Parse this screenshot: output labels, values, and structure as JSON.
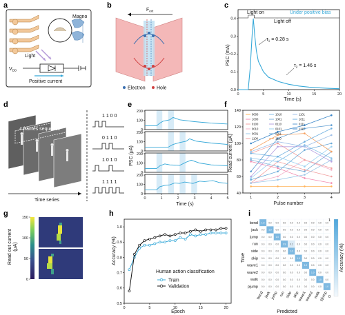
{
  "colors": {
    "accent_cyan": "#35a8d8",
    "neuron_orange": "#f2c89a",
    "magno_blue": "#8fb4d9",
    "electrode_pink": "#f4b8b8",
    "heatmap_dark": "#2b2f6e",
    "heatmap_bright": "#f3e63c",
    "cm_highlight": "#7db8e0",
    "cm_light": "#dcebf6"
  },
  "panels": {
    "a": {
      "letter": "a",
      "magno": "Magno",
      "light": "Light",
      "vdd": "V",
      "vdd_sub": "DD",
      "positive_current": "Positive current"
    },
    "b": {
      "letter": "b",
      "field": "F",
      "field_sub": "ext",
      "electron": "Electron",
      "hole": "Hole"
    },
    "c": {
      "letter": "c",
      "under_bias": "Under positive bias",
      "light_on": "Light on",
      "light_off": "Light off",
      "tau1": "τ",
      "tau1_sub": "1",
      "tau1_val": " = 0.28 s",
      "tau2": "τ",
      "tau2_sub": "2",
      "tau2_val": " = 1.46 s",
      "ylabel": "PSC (mA)",
      "xlabel": "Time (s)"
    },
    "d": {
      "letter": "d",
      "frames": "4 frames sequence",
      "time_series": "Time series",
      "codes": [
        "1 1 0 0",
        "0 1 1 0",
        "1 0 1 0",
        "1 1 1 1"
      ]
    },
    "e": {
      "letter": "e",
      "ylabel": "PSC (μA)",
      "xlabel": "Time (s)"
    },
    "f": {
      "letter": "f",
      "ylabel": "Read current (μA)",
      "xlabel": "Pulse number"
    },
    "g": {
      "letter": "g",
      "ylabel": "Read out current",
      "yunit": "(μA)"
    },
    "h": {
      "letter": "h",
      "ylabel": "Accuracy (%)",
      "xlabel": "Epoch",
      "legend_title": "Human action classification",
      "train": "Train",
      "validation": "Validation"
    },
    "i": {
      "letter": "i",
      "ylabel": "True",
      "xlabel": "Predicted",
      "cbar_label": "Accuracy (%)",
      "cbar_max": "1",
      "cbar_min": "0"
    }
  },
  "chart_data": [
    {
      "id": "c",
      "type": "line",
      "x": [
        0,
        2,
        2.4,
        2.8,
        3.0,
        3.3,
        3.6,
        4,
        5,
        6,
        8,
        10,
        12,
        14,
        16,
        18,
        20
      ],
      "y": [
        0,
        0,
        0.12,
        0.32,
        0.4,
        0.3,
        0.22,
        0.16,
        0.1,
        0.07,
        0.045,
        0.03,
        0.02,
        0.014,
        0.01,
        0.007,
        0.005
      ],
      "xlim": [
        0,
        20
      ],
      "ylim": [
        0,
        0.45
      ],
      "xticks": [
        "0",
        "5",
        "10",
        "15",
        "20"
      ],
      "yticks": [
        "0.0",
        "0.1",
        "0.2",
        "0.3",
        "0.4"
      ]
    },
    {
      "id": "e",
      "type": "line",
      "xlim": [
        0,
        5
      ],
      "ylim": [
        0,
        200
      ],
      "xticks": [
        "0",
        "1",
        "2",
        "3",
        "4",
        "5"
      ],
      "yticks": [
        "0",
        "100",
        "200"
      ],
      "series": [
        {
          "code": "1100",
          "x": [
            0,
            0.7,
            0.9,
            1.1,
            1.5,
            1.7,
            2.1,
            3,
            4,
            5
          ],
          "y": [
            40,
            40,
            70,
            90,
            105,
            130,
            105,
            85,
            70,
            60
          ]
        },
        {
          "code": "0110",
          "x": [
            0,
            1.4,
            1.7,
            2.1,
            2.5,
            2.7,
            3.1,
            4,
            5
          ],
          "y": [
            40,
            40,
            70,
            90,
            105,
            130,
            105,
            85,
            70
          ]
        },
        {
          "code": "1010",
          "x": [
            0,
            0.7,
            0.9,
            1.2,
            1.5,
            2.1,
            2.5,
            2.8,
            3.3,
            4,
            5
          ],
          "y": [
            40,
            40,
            70,
            90,
            80,
            75,
            110,
            130,
            100,
            80,
            70
          ]
        },
        {
          "code": "1111",
          "x": [
            0,
            0.7,
            0.9,
            1.2,
            1.5,
            1.8,
            2.1,
            2.4,
            2.9,
            3.3,
            3.6,
            4.1,
            4.5,
            5
          ],
          "y": [
            40,
            40,
            75,
            90,
            95,
            115,
            110,
            125,
            110,
            135,
            130,
            140,
            120,
            110
          ]
        }
      ]
    },
    {
      "id": "f",
      "type": "line",
      "x": [
        1,
        2,
        3,
        4
      ],
      "xlim": [
        0.7,
        4.3
      ],
      "ylim": [
        40,
        140
      ],
      "xticks": [
        "1",
        "2",
        "3",
        "4"
      ],
      "yticks": [
        "40",
        "60",
        "80",
        "100",
        "120",
        "140"
      ],
      "legend": [
        "0000",
        "1000",
        "0100",
        "0010",
        "0001",
        "1100",
        "1010",
        "1001",
        "0110",
        "0101",
        "0011",
        "1110",
        "1101",
        "1011",
        "0111",
        "1111"
      ],
      "series_colors": [
        "#ffb35a",
        "#f28bb0",
        "#f2a0a0",
        "#f4b0c8",
        "#9ec8e8",
        "#f2a0a0",
        "#88c0e8",
        "#7fb0d8",
        "#b6a0e0",
        "#9ad0f0",
        "#6aaad8",
        "#f5a060",
        "#a0c0e8",
        "#70b0e0",
        "#5a9ad0",
        "#3a86c8"
      ],
      "series": [
        [
          48,
          48,
          48,
          48
        ],
        [
          78,
          70,
          58,
          52
        ],
        [
          52,
          78,
          68,
          60
        ],
        [
          52,
          60,
          80,
          68
        ],
        [
          52,
          56,
          62,
          80
        ],
        [
          88,
          100,
          80,
          70
        ],
        [
          82,
          78,
          98,
          82
        ],
        [
          80,
          72,
          66,
          90
        ],
        [
          60,
          96,
          96,
          78
        ],
        [
          58,
          84,
          72,
          96
        ],
        [
          56,
          66,
          92,
          100
        ],
        [
          92,
          110,
          112,
          90
        ],
        [
          90,
          102,
          96,
          110
        ],
        [
          88,
          84,
          102,
          118
        ],
        [
          66,
          106,
          118,
          122
        ],
        [
          100,
          114,
          122,
          134
        ]
      ]
    },
    {
      "id": "h",
      "type": "line",
      "xlim": [
        0,
        21
      ],
      "ylim": [
        0.5,
        1.05
      ],
      "xticks": [
        "0",
        "5",
        "10",
        "15",
        "20"
      ],
      "yticks": [
        "0.5",
        "0.6",
        "0.7",
        "0.8",
        "0.9",
        "1.0"
      ],
      "series": [
        {
          "name": "Train",
          "x": [
            1,
            2,
            3,
            4,
            5,
            6,
            7,
            8,
            9,
            10,
            11,
            12,
            13,
            14,
            15,
            16,
            17,
            18,
            19,
            20
          ],
          "y": [
            0.72,
            0.8,
            0.86,
            0.88,
            0.88,
            0.89,
            0.9,
            0.9,
            0.91,
            0.91,
            0.93,
            0.92,
            0.95,
            0.94,
            0.95,
            0.95,
            0.96,
            0.96,
            0.96,
            0.96
          ]
        },
        {
          "name": "Validation",
          "x": [
            1,
            2,
            3,
            4,
            5,
            6,
            7,
            8,
            9,
            10,
            11,
            12,
            13,
            14,
            15,
            16,
            17,
            18,
            19,
            20
          ],
          "y": [
            0.58,
            0.82,
            0.88,
            0.91,
            0.92,
            0.93,
            0.94,
            0.95,
            0.94,
            0.95,
            0.96,
            0.96,
            0.97,
            0.98,
            0.97,
            0.98,
            0.98,
            0.98,
            0.99,
            0.99
          ]
        }
      ]
    },
    {
      "id": "i",
      "type": "heatmap",
      "labels": [
        "bend",
        "jack",
        "jump",
        "run",
        "side",
        "skip",
        "wave1",
        "wave2",
        "walk",
        "pjump"
      ],
      "values": [
        [
          1.0,
          0.0,
          0.0,
          0.0,
          0.0,
          0.0,
          0.0,
          0.0,
          0.0,
          0.0
        ],
        [
          0.0,
          1.0,
          0.0,
          0.0,
          0.0,
          0.0,
          0.0,
          0.0,
          0.0,
          0.0
        ],
        [
          0.0,
          0.0,
          1.0,
          0.0,
          0.0,
          0.0,
          0.0,
          0.0,
          0.0,
          0.0
        ],
        [
          0.0,
          0.0,
          0.0,
          0.9,
          0.1,
          0.0,
          0.0,
          0.0,
          0.0,
          0.0
        ],
        [
          0.0,
          0.0,
          0.0,
          0.0,
          1.0,
          0.0,
          0.0,
          0.0,
          0.0,
          0.0
        ],
        [
          0.0,
          0.0,
          0.0,
          0.0,
          0.0,
          1.0,
          0.0,
          0.0,
          0.0,
          0.0
        ],
        [
          0.0,
          0.0,
          0.0,
          0.0,
          0.0,
          0.0,
          1.0,
          0.0,
          0.0,
          0.0
        ],
        [
          0.0,
          0.0,
          0.0,
          0.0,
          0.0,
          0.0,
          0.0,
          1.0,
          0.0,
          0.0
        ],
        [
          0.0,
          0.0,
          0.0,
          0.0,
          0.0,
          0.0,
          0.0,
          0.0,
          1.0,
          0.0
        ],
        [
          0.0,
          0.0,
          0.0,
          0.0,
          0.0,
          0.0,
          0.0,
          0.0,
          0.0,
          1.0
        ]
      ]
    },
    {
      "id": "g",
      "type": "heatmap",
      "colorbar_ticks": [
        "0",
        "50",
        "100",
        "150"
      ]
    }
  ]
}
